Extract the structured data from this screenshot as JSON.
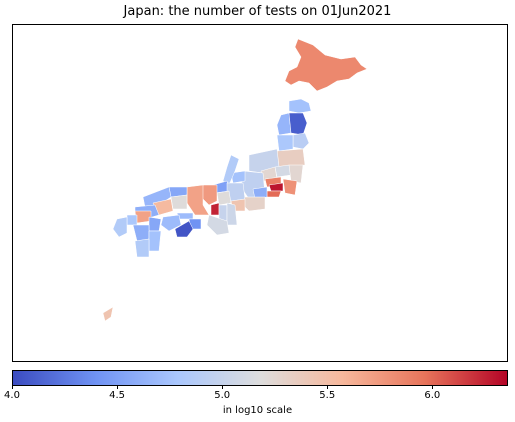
{
  "title": "Japan: the number of tests on 01Jun2021",
  "colorbar": {
    "label": "in log10 scale",
    "min": 4.0,
    "max": 6.36,
    "ticks": [
      {
        "value": 4.0,
        "label": "4.0"
      },
      {
        "value": 4.5,
        "label": "4.5"
      },
      {
        "value": 5.0,
        "label": "5.0"
      },
      {
        "value": 5.5,
        "label": "5.5"
      },
      {
        "value": 6.0,
        "label": "6.0"
      }
    ],
    "colors": [
      "#3b4cc0",
      "#6f92f3",
      "#aac7fd",
      "#dddddd",
      "#f7b89c",
      "#e7745b",
      "#b40426"
    ]
  },
  "regions": [
    {
      "name": "Hokkaido",
      "value": 5.85
    },
    {
      "name": "Aomori",
      "value": 4.75
    },
    {
      "name": "Iwate",
      "value": 4.1
    },
    {
      "name": "Akita",
      "value": 4.65
    },
    {
      "name": "Miyagi",
      "value": 4.9
    },
    {
      "name": "Yamagata",
      "value": 4.8
    },
    {
      "name": "Fukushima",
      "value": 5.35
    },
    {
      "name": "Niigata",
      "value": 5.0
    },
    {
      "name": "Tochigi",
      "value": 5.1
    },
    {
      "name": "Gunma",
      "value": 5.25
    },
    {
      "name": "Ibaraki",
      "value": 5.25
    },
    {
      "name": "Saitama",
      "value": 5.9
    },
    {
      "name": "Tokyo",
      "value": 6.3
    },
    {
      "name": "Chiba",
      "value": 5.8
    },
    {
      "name": "Kanagawa",
      "value": 6.0
    },
    {
      "name": "Nagano",
      "value": 4.95
    },
    {
      "name": "Toyama",
      "value": 4.75
    },
    {
      "name": "Ishikawa",
      "value": 4.85
    },
    {
      "name": "Fukui",
      "value": 4.5
    },
    {
      "name": "Gifu",
      "value": 4.95
    },
    {
      "name": "Shizuoka",
      "value": 5.3
    },
    {
      "name": "Aichi",
      "value": 5.45
    },
    {
      "name": "Yamanashi",
      "value": 4.6
    },
    {
      "name": "Shiga",
      "value": 5.2
    },
    {
      "name": "Kyoto",
      "value": 5.75
    },
    {
      "name": "Osaka",
      "value": 6.25
    },
    {
      "name": "Hyogo",
      "value": 5.7
    },
    {
      "name": "Nara",
      "value": 5.0
    },
    {
      "name": "Mie",
      "value": 5.05
    },
    {
      "name": "Wakayama",
      "value": 5.1
    },
    {
      "name": "Tottori",
      "value": 4.55
    },
    {
      "name": "Shimane",
      "value": 4.65
    },
    {
      "name": "Okayama",
      "value": 5.2
    },
    {
      "name": "Hiroshima",
      "value": 5.55
    },
    {
      "name": "Yamaguchi",
      "value": 4.6
    },
    {
      "name": "Tokushima",
      "value": 4.4
    },
    {
      "name": "Kagawa",
      "value": 4.7
    },
    {
      "name": "Ehime",
      "value": 4.7
    },
    {
      "name": "Kochi",
      "value": 4.05
    },
    {
      "name": "Fukuoka",
      "value": 5.7
    },
    {
      "name": "Saga",
      "value": 4.8
    },
    {
      "name": "Nagasaki",
      "value": 4.85
    },
    {
      "name": "Kumamoto",
      "value": 4.6
    },
    {
      "name": "Oita",
      "value": 4.55
    },
    {
      "name": "Miyazaki",
      "value": 4.75
    },
    {
      "name": "Kagoshima",
      "value": 4.85
    },
    {
      "name": "Okinawa",
      "value": 5.45
    }
  ]
}
